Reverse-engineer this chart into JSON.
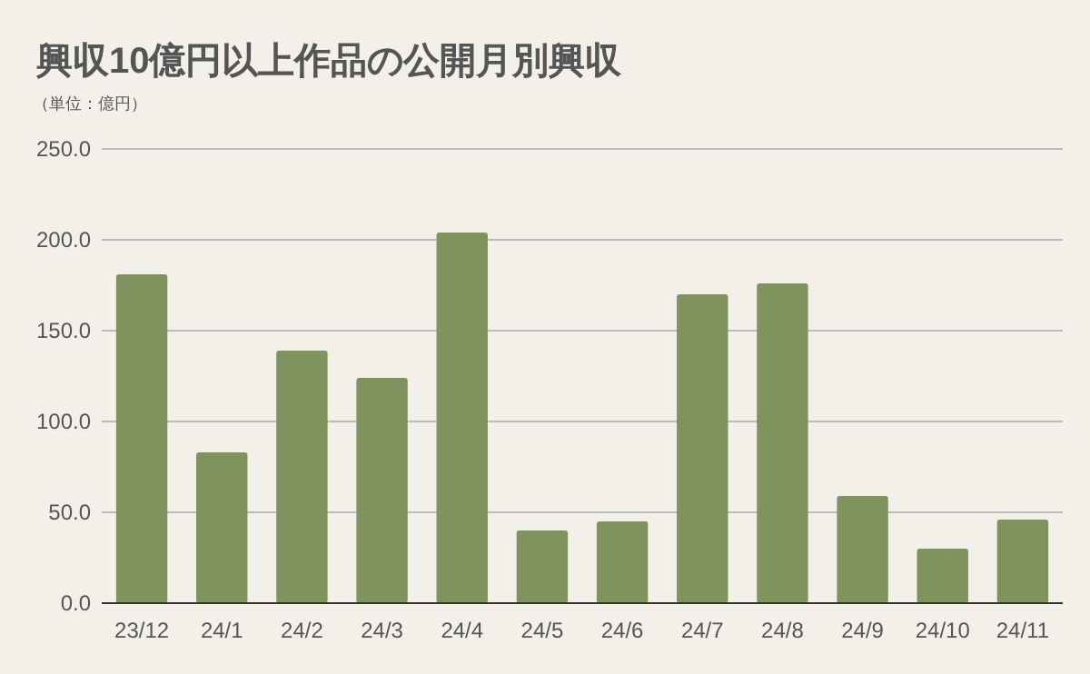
{
  "chart_data": {
    "type": "bar",
    "title": "興収10億円以上作品の公開月別興収",
    "subtitle": "（単位：億円）",
    "categories": [
      "23/12",
      "24/1",
      "24/2",
      "24/3",
      "24/4",
      "24/5",
      "24/6",
      "24/7",
      "24/8",
      "24/9",
      "24/10",
      "24/11"
    ],
    "values": [
      181,
      83,
      139,
      124,
      204,
      40,
      45,
      170,
      176,
      59,
      30,
      46
    ],
    "color": "#7f935f",
    "ylim": [
      0,
      250
    ],
    "yticks": [
      {
        "value": 0,
        "label": "0.0"
      },
      {
        "value": 50,
        "label": "50.0"
      },
      {
        "value": 100,
        "label": "100.0"
      },
      {
        "value": 150,
        "label": "150.0"
      },
      {
        "value": 200,
        "label": "200.0"
      },
      {
        "value": 250,
        "label": "250.0"
      }
    ],
    "grid": "y",
    "legend": false
  }
}
